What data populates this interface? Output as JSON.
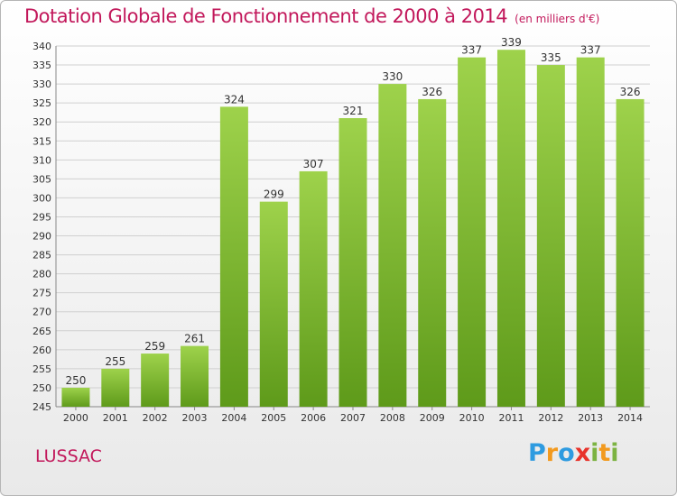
{
  "header": {
    "title": "Dotation Globale de Fonctionnement de 2000 à 2014",
    "unit": "(en milliers d'€)"
  },
  "footer": {
    "town": "LUSSAC",
    "logo_text": "Proxiti",
    "logo_letters": [
      {
        "ch": "P",
        "color": "#2e9be0"
      },
      {
        "ch": "r",
        "color": "#f29a1f"
      },
      {
        "ch": "o",
        "color": "#2e9be0"
      },
      {
        "ch": "x",
        "color": "#e8332b"
      },
      {
        "ch": "i",
        "color": "#7cb342"
      },
      {
        "ch": "t",
        "color": "#f29a1f"
      },
      {
        "ch": "i",
        "color": "#7cb342"
      }
    ]
  },
  "colors": {
    "title": "#c2185b",
    "bar_top": "#9ed24b",
    "bar_bottom": "#5e9a1a",
    "grid": "#d0d0d0"
  },
  "chart_data": {
    "type": "bar",
    "title": "Dotation Globale de Fonctionnement de 2000 à 2014",
    "subtitle": "(en milliers d'€)",
    "categories": [
      "2000",
      "2001",
      "2002",
      "2003",
      "2004",
      "2005",
      "2006",
      "2007",
      "2008",
      "2009",
      "2010",
      "2011",
      "2012",
      "2013",
      "2014"
    ],
    "values": [
      250,
      255,
      259,
      261,
      324,
      299,
      307,
      321,
      330,
      326,
      337,
      339,
      335,
      337,
      326
    ],
    "xlabel": "",
    "ylabel": "",
    "ylim": [
      245,
      340
    ],
    "yticks": [
      245,
      250,
      255,
      260,
      265,
      270,
      275,
      280,
      285,
      290,
      295,
      300,
      305,
      310,
      315,
      320,
      325,
      330,
      335,
      340
    ],
    "grid": true,
    "data_labels": true
  }
}
